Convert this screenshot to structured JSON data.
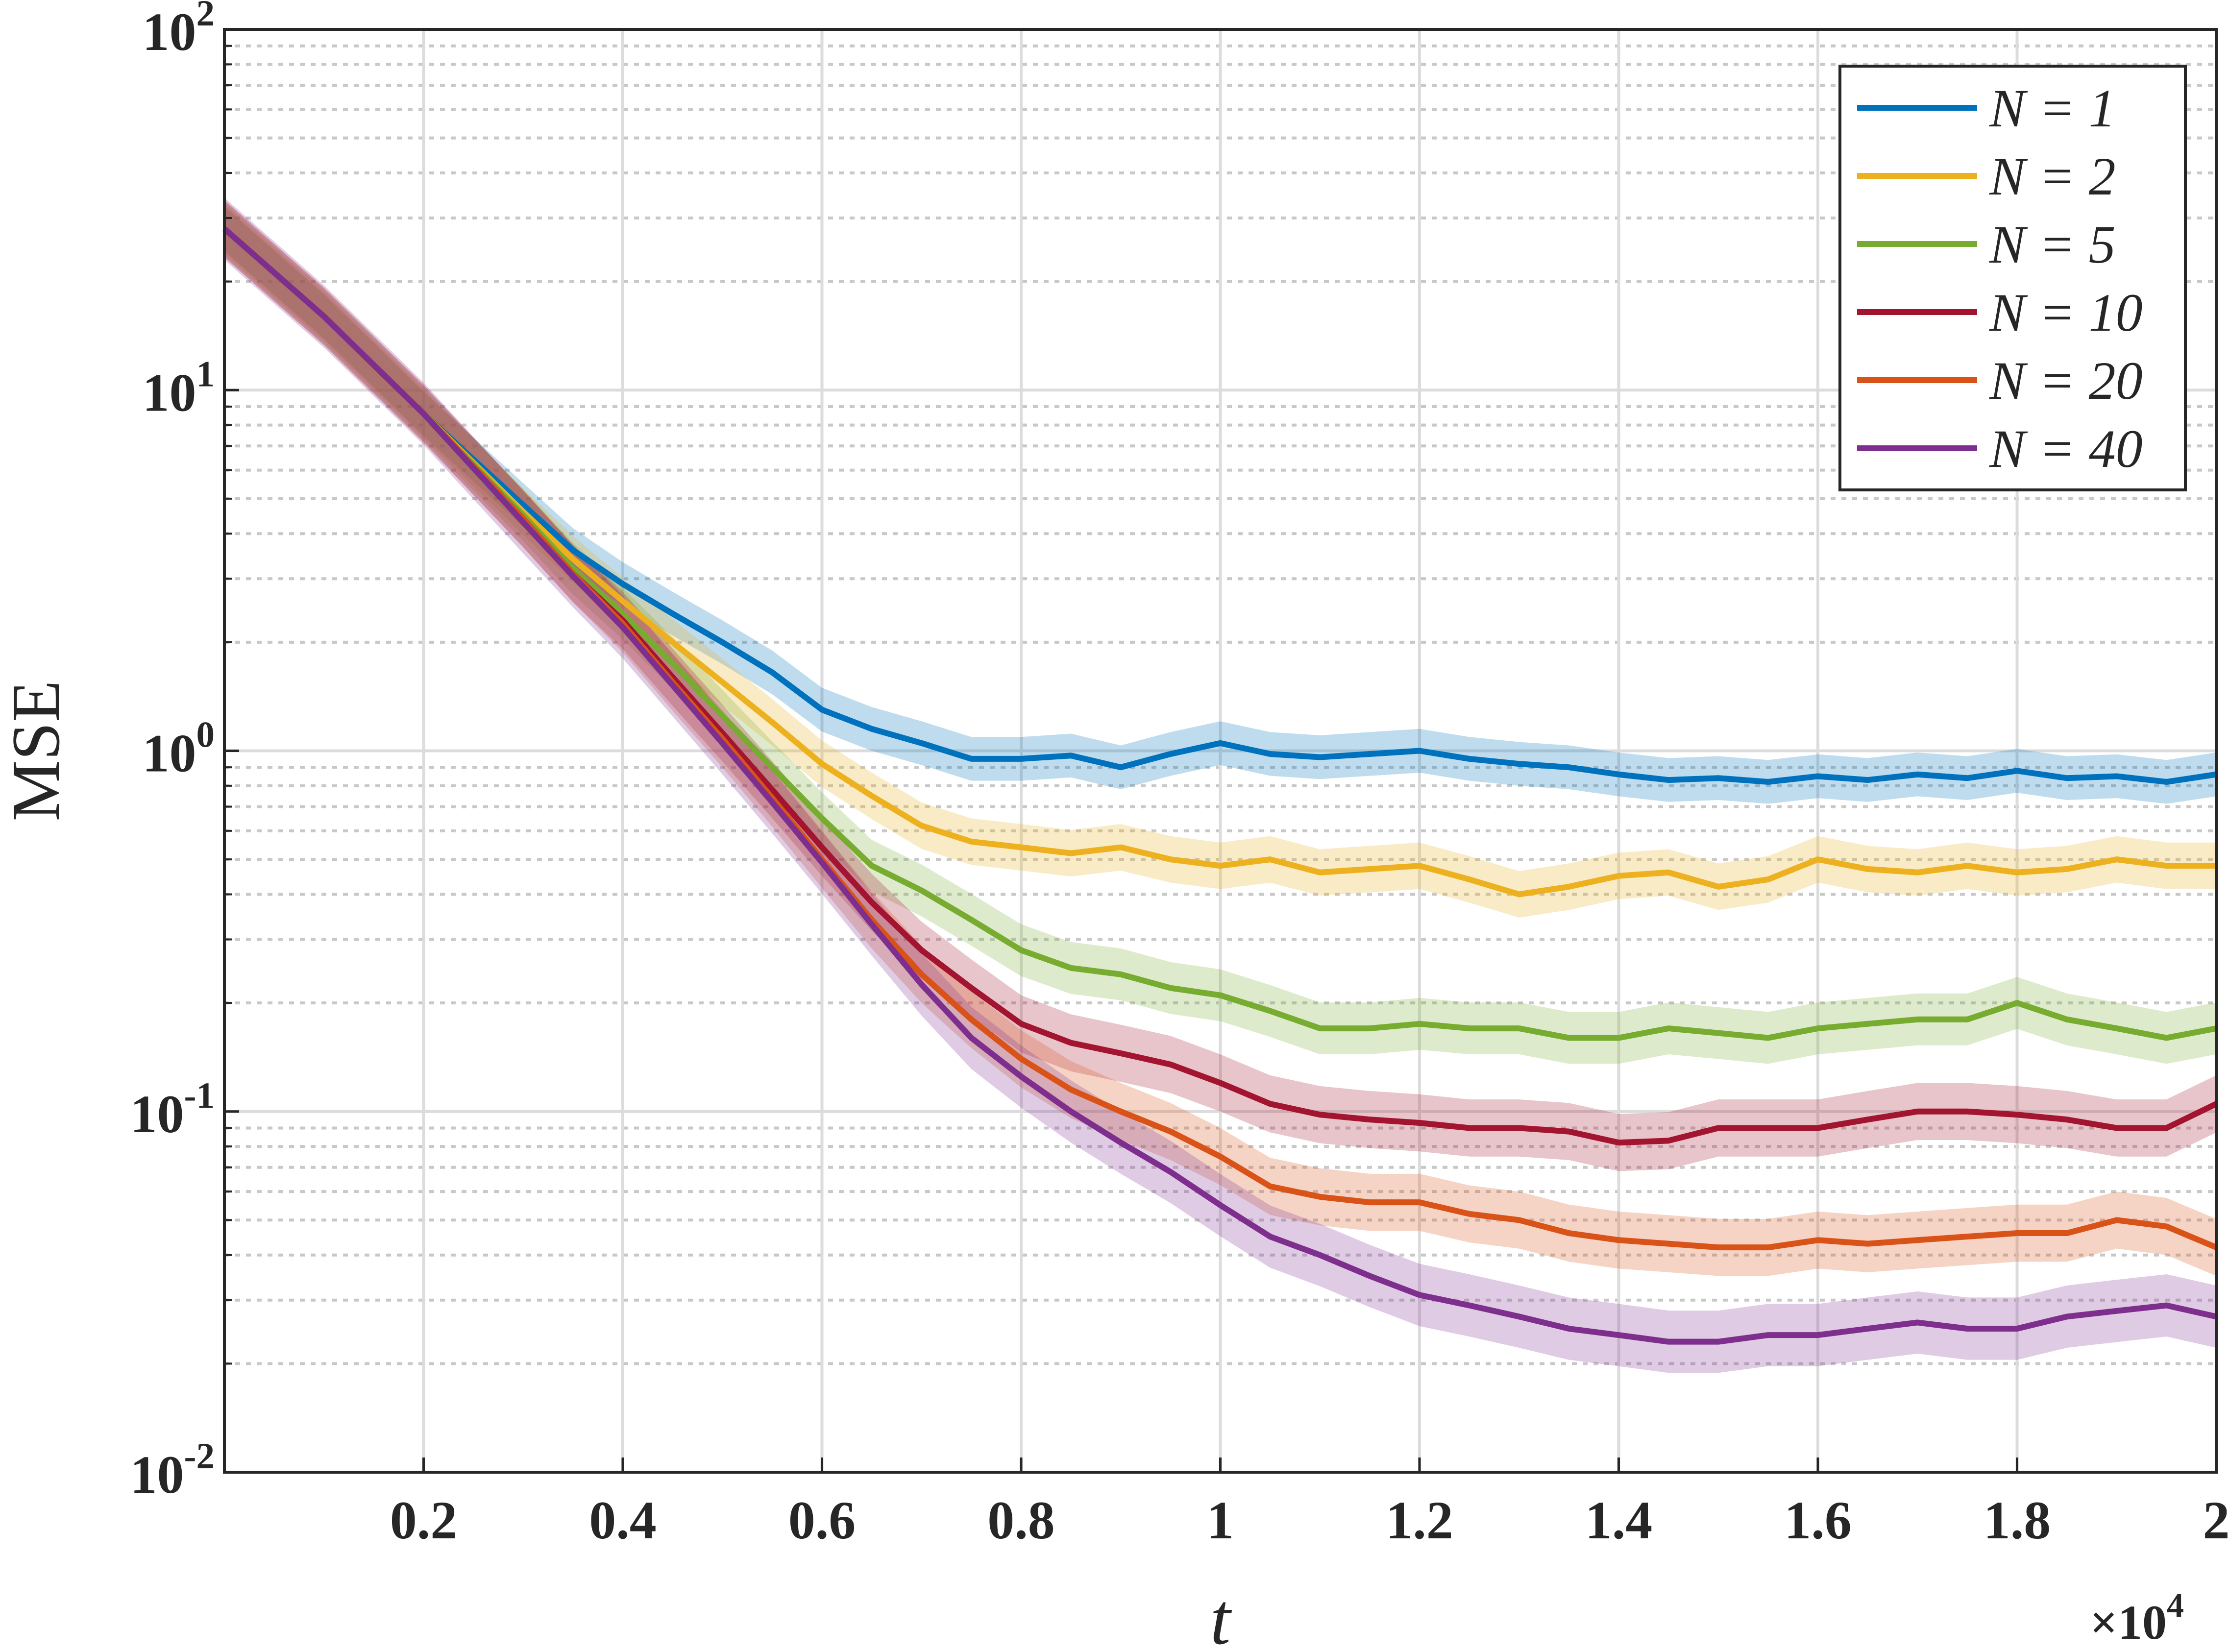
{
  "chart_data": {
    "type": "line",
    "xlabel": "t",
    "ylabel": "MSE",
    "x_exponent_label": "×10",
    "x_exponent_power": "4",
    "x_scale": "linear",
    "y_scale": "log",
    "xlim": [
      0,
      20000
    ],
    "ylim": [
      0.01,
      100
    ],
    "grid": true,
    "legend_position": "top-right",
    "x_ticks": [
      2000,
      4000,
      6000,
      8000,
      10000,
      12000,
      14000,
      16000,
      18000,
      20000
    ],
    "x_tick_labels": [
      "0.2",
      "0.4",
      "0.6",
      "0.8",
      "1",
      "1.2",
      "1.4",
      "1.6",
      "1.8",
      "2"
    ],
    "y_ticks": [
      0.01,
      0.1,
      1,
      10,
      100
    ],
    "y_tick_labels": [
      {
        "base": "10",
        "exp": "-2"
      },
      {
        "base": "10",
        "exp": "-1"
      },
      {
        "base": "10",
        "exp": "0"
      },
      {
        "base": "10",
        "exp": "1"
      },
      {
        "base": "10",
        "exp": "2"
      }
    ],
    "x": [
      0,
      1000,
      2000,
      3000,
      3500,
      4000,
      4500,
      5000,
      5500,
      6000,
      6500,
      7000,
      7500,
      8000,
      8500,
      9000,
      9500,
      10000,
      10500,
      11000,
      11500,
      12000,
      12500,
      13000,
      13500,
      14000,
      14500,
      15000,
      15500,
      16000,
      16500,
      17000,
      17500,
      18000,
      18500,
      19000,
      19500,
      20000
    ],
    "series": [
      {
        "name": "N = 1",
        "color": "#0072BD",
        "values": [
          28,
          16,
          8.6,
          4.8,
          3.6,
          2.9,
          2.4,
          2.0,
          1.65,
          1.3,
          1.15,
          1.05,
          0.95,
          0.95,
          0.97,
          0.9,
          0.98,
          1.05,
          0.98,
          0.96,
          0.98,
          1.0,
          0.95,
          0.92,
          0.9,
          0.86,
          0.83,
          0.84,
          0.82,
          0.85,
          0.83,
          0.86,
          0.84,
          0.88,
          0.84,
          0.85,
          0.82,
          0.86
        ],
        "band": [
          0.15,
          0.15,
          0.15,
          0.15,
          0.15,
          0.15,
          0.15,
          0.15,
          0.15,
          0.15,
          0.15,
          0.15,
          0.15,
          0.15,
          0.15,
          0.15,
          0.15,
          0.15,
          0.15,
          0.15,
          0.15,
          0.15,
          0.15,
          0.15,
          0.15,
          0.15,
          0.15,
          0.15,
          0.15,
          0.15,
          0.15,
          0.15,
          0.15,
          0.15,
          0.15,
          0.15,
          0.15,
          0.15
        ]
      },
      {
        "name": "N = 2",
        "color": "#EDB120",
        "values": [
          28,
          16,
          8.6,
          4.6,
          3.4,
          2.6,
          2.0,
          1.55,
          1.2,
          0.92,
          0.75,
          0.62,
          0.56,
          0.54,
          0.52,
          0.54,
          0.5,
          0.48,
          0.5,
          0.46,
          0.47,
          0.48,
          0.44,
          0.4,
          0.42,
          0.45,
          0.46,
          0.42,
          0.44,
          0.5,
          0.47,
          0.46,
          0.48,
          0.46,
          0.47,
          0.5,
          0.48,
          0.48
        ],
        "band": [
          0.16,
          0.16,
          0.16,
          0.16,
          0.16,
          0.16,
          0.16,
          0.16,
          0.16,
          0.16,
          0.16,
          0.16,
          0.16,
          0.16,
          0.16,
          0.16,
          0.16,
          0.16,
          0.16,
          0.16,
          0.16,
          0.16,
          0.16,
          0.16,
          0.16,
          0.16,
          0.16,
          0.16,
          0.16,
          0.16,
          0.16,
          0.16,
          0.16,
          0.16,
          0.16,
          0.16,
          0.16,
          0.16
        ]
      },
      {
        "name": "N = 5",
        "color": "#77AC30",
        "values": [
          28,
          16,
          8.6,
          4.5,
          3.2,
          2.4,
          1.75,
          1.25,
          0.9,
          0.65,
          0.48,
          0.41,
          0.34,
          0.28,
          0.25,
          0.24,
          0.22,
          0.21,
          0.19,
          0.17,
          0.17,
          0.175,
          0.17,
          0.17,
          0.16,
          0.16,
          0.17,
          0.165,
          0.16,
          0.17,
          0.175,
          0.18,
          0.18,
          0.2,
          0.18,
          0.17,
          0.16,
          0.17
        ],
        "band": [
          0.18,
          0.18,
          0.18,
          0.18,
          0.18,
          0.18,
          0.18,
          0.18,
          0.18,
          0.18,
          0.18,
          0.18,
          0.18,
          0.18,
          0.18,
          0.18,
          0.18,
          0.18,
          0.18,
          0.18,
          0.18,
          0.18,
          0.18,
          0.18,
          0.18,
          0.18,
          0.18,
          0.18,
          0.18,
          0.18,
          0.18,
          0.18,
          0.18,
          0.18,
          0.18,
          0.18,
          0.18,
          0.18
        ]
      },
      {
        "name": "N = 10",
        "color": "#A2142F",
        "values": [
          28,
          16,
          8.6,
          4.4,
          3.1,
          2.3,
          1.6,
          1.12,
          0.78,
          0.54,
          0.38,
          0.28,
          0.22,
          0.175,
          0.155,
          0.145,
          0.135,
          0.12,
          0.105,
          0.098,
          0.095,
          0.093,
          0.09,
          0.09,
          0.088,
          0.082,
          0.083,
          0.09,
          0.09,
          0.09,
          0.095,
          0.1,
          0.1,
          0.098,
          0.095,
          0.09,
          0.09,
          0.105
        ],
        "band": [
          0.2,
          0.2,
          0.2,
          0.2,
          0.2,
          0.2,
          0.2,
          0.2,
          0.2,
          0.2,
          0.2,
          0.2,
          0.2,
          0.2,
          0.2,
          0.2,
          0.2,
          0.2,
          0.2,
          0.2,
          0.2,
          0.2,
          0.2,
          0.2,
          0.2,
          0.2,
          0.2,
          0.2,
          0.2,
          0.2,
          0.2,
          0.2,
          0.2,
          0.2,
          0.2,
          0.2,
          0.2,
          0.2
        ]
      },
      {
        "name": "N = 20",
        "color": "#D95319",
        "values": [
          28,
          16,
          8.6,
          4.4,
          3.1,
          2.25,
          1.55,
          1.08,
          0.74,
          0.5,
          0.34,
          0.24,
          0.18,
          0.14,
          0.115,
          0.1,
          0.088,
          0.075,
          0.062,
          0.058,
          0.056,
          0.056,
          0.052,
          0.05,
          0.046,
          0.044,
          0.043,
          0.042,
          0.042,
          0.044,
          0.043,
          0.044,
          0.045,
          0.046,
          0.046,
          0.05,
          0.048,
          0.042
        ],
        "band": [
          0.2,
          0.2,
          0.2,
          0.2,
          0.2,
          0.2,
          0.2,
          0.2,
          0.2,
          0.2,
          0.2,
          0.2,
          0.2,
          0.2,
          0.2,
          0.2,
          0.2,
          0.2,
          0.2,
          0.2,
          0.2,
          0.2,
          0.2,
          0.2,
          0.2,
          0.2,
          0.2,
          0.2,
          0.2,
          0.2,
          0.2,
          0.2,
          0.2,
          0.2,
          0.2,
          0.2,
          0.2,
          0.2
        ]
      },
      {
        "name": "N = 40",
        "color": "#7E2F8E",
        "values": [
          28,
          16,
          8.6,
          4.3,
          3.05,
          2.2,
          1.52,
          1.05,
          0.72,
          0.49,
          0.33,
          0.225,
          0.16,
          0.125,
          0.1,
          0.082,
          0.068,
          0.055,
          0.045,
          0.04,
          0.035,
          0.031,
          0.029,
          0.027,
          0.025,
          0.024,
          0.023,
          0.023,
          0.024,
          0.024,
          0.025,
          0.026,
          0.025,
          0.025,
          0.027,
          0.028,
          0.029,
          0.027
        ],
        "band": [
          0.22,
          0.22,
          0.22,
          0.22,
          0.22,
          0.22,
          0.22,
          0.22,
          0.22,
          0.22,
          0.22,
          0.22,
          0.22,
          0.22,
          0.22,
          0.22,
          0.22,
          0.22,
          0.22,
          0.22,
          0.22,
          0.22,
          0.22,
          0.22,
          0.22,
          0.22,
          0.22,
          0.22,
          0.22,
          0.22,
          0.22,
          0.22,
          0.22,
          0.22,
          0.22,
          0.22,
          0.22,
          0.22
        ]
      }
    ]
  }
}
